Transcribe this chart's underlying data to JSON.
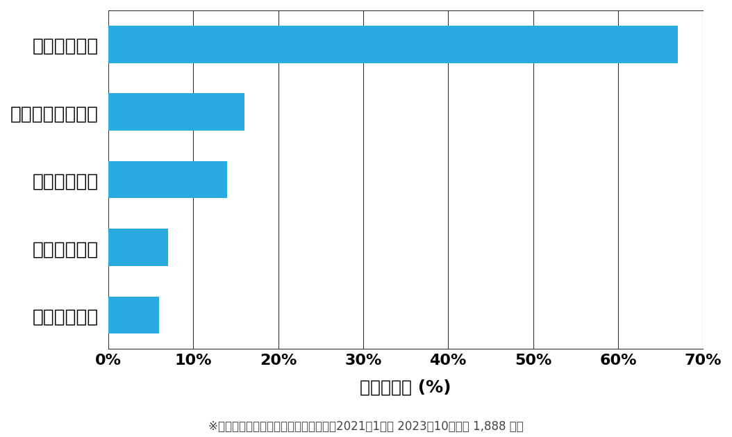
{
  "categories": [
    "アンテナ修理",
    "アンテナ新規設置",
    "アンテナ交換",
    "アンテナ撤去",
    "アンテナ調整"
  ],
  "values": [
    67,
    16,
    14,
    7,
    6
  ],
  "bar_color": "#29ABE2",
  "xlim": [
    0,
    70
  ],
  "xticks": [
    0,
    10,
    20,
    30,
    40,
    50,
    60,
    70
  ],
  "xlabel": "件数の割合 (%)",
  "footnote": "※弊社受付の案件を対象に集計（期間：2021年1月～ 2023年10月、計 1,888 件）",
  "background_color": "#ffffff",
  "bar_height": 0.55,
  "grid_color": "#333333",
  "tick_fontsize": 16,
  "label_fontsize": 18,
  "ylabel_fontsize": 19,
  "footnote_fontsize": 12
}
